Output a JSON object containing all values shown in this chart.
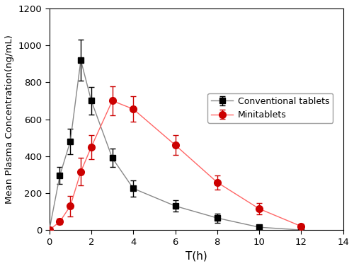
{
  "conv_x": [
    0,
    0.5,
    1.0,
    1.5,
    2.0,
    3.0,
    4.0,
    6.0,
    8.0,
    10.0,
    12.0
  ],
  "conv_y": [
    0,
    295,
    480,
    920,
    700,
    390,
    225,
    130,
    65,
    15,
    0
  ],
  "conv_yerr": [
    0,
    45,
    70,
    110,
    75,
    50,
    45,
    30,
    25,
    10,
    5
  ],
  "mini_x": [
    0,
    0.5,
    1.0,
    1.5,
    2.0,
    3.0,
    4.0,
    6.0,
    8.0,
    10.0,
    12.0
  ],
  "mini_y": [
    0,
    45,
    130,
    315,
    450,
    700,
    655,
    460,
    258,
    115,
    20
  ],
  "mini_yerr": [
    0,
    15,
    55,
    75,
    65,
    80,
    70,
    55,
    38,
    30,
    10
  ],
  "xlabel": "T(h)",
  "ylabel": "Mean Plasma Concentration(ng/mL)",
  "xlim": [
    0,
    14
  ],
  "ylim": [
    0,
    1200
  ],
  "yticks": [
    0,
    200,
    400,
    600,
    800,
    1000,
    1200
  ],
  "xticks": [
    0,
    2,
    4,
    6,
    8,
    10,
    12,
    14
  ],
  "conv_line_color": "#888888",
  "conv_marker_color": "#000000",
  "mini_color": "#cc0000",
  "mini_line_color": "#ff6666",
  "conv_label": "Conventional tablets",
  "mini_label": "Minitablets",
  "background_color": "#ffffff"
}
